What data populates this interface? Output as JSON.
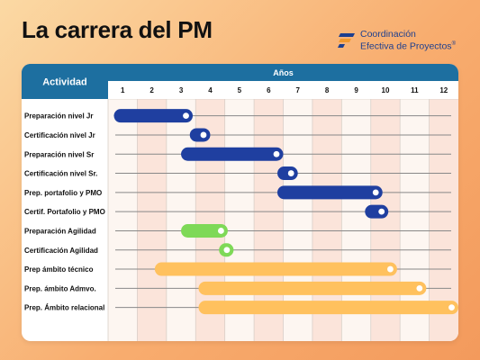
{
  "title": "La carrera del PM",
  "brand": {
    "line1": "Coordinación",
    "line2": "Efectiva de Proyectos",
    "reg": "®",
    "colors": {
      "blue": "#1d3f8f",
      "orange": "#f29a2e"
    }
  },
  "chart_data": {
    "type": "gantt",
    "header_left": "Actividad",
    "header_top": "Años",
    "x_ticks": [
      "1",
      "2",
      "3",
      "4",
      "5",
      "6",
      "7",
      "8",
      "9",
      "10",
      "11",
      "12"
    ],
    "xlim": [
      0,
      12
    ],
    "colors": {
      "header": "#1d6fa0",
      "blue": "#1f3fa0",
      "green": "#7ed957",
      "yellow": "#ffc15e",
      "stripe_a": "#fdf6f1",
      "stripe_b": "#fbe4da",
      "line": "#888888"
    },
    "tasks": [
      {
        "label": "Preparación nivel Jr",
        "start": 0.2,
        "end": 2.9,
        "color": "blue"
      },
      {
        "label": "Certificación nivel Jr",
        "start": 2.8,
        "end": 3.5,
        "color": "blue"
      },
      {
        "label": "Preparación nivel Sr",
        "start": 2.5,
        "end": 6.0,
        "color": "blue"
      },
      {
        "label": "Certificación nivel Sr.",
        "start": 5.8,
        "end": 6.5,
        "color": "blue"
      },
      {
        "label": "Prep. portafolio y PMO",
        "start": 5.8,
        "end": 9.4,
        "color": "blue"
      },
      {
        "label": "Certif. Portafolio y PMO",
        "start": 8.8,
        "end": 9.6,
        "color": "blue"
      },
      {
        "label": "Preparación Agilidad",
        "start": 2.5,
        "end": 4.1,
        "color": "green"
      },
      {
        "label": "Certificación Agilidad",
        "start": 3.8,
        "end": 4.3,
        "color": "green"
      },
      {
        "label": "Prep ámbito técnico",
        "start": 1.6,
        "end": 9.9,
        "color": "yellow"
      },
      {
        "label": "Prep. ámbito Admvo.",
        "start": 3.1,
        "end": 10.9,
        "color": "yellow"
      },
      {
        "label": "Prep. Ámbito relacional",
        "start": 3.1,
        "end": 12.0,
        "color": "yellow"
      }
    ]
  }
}
